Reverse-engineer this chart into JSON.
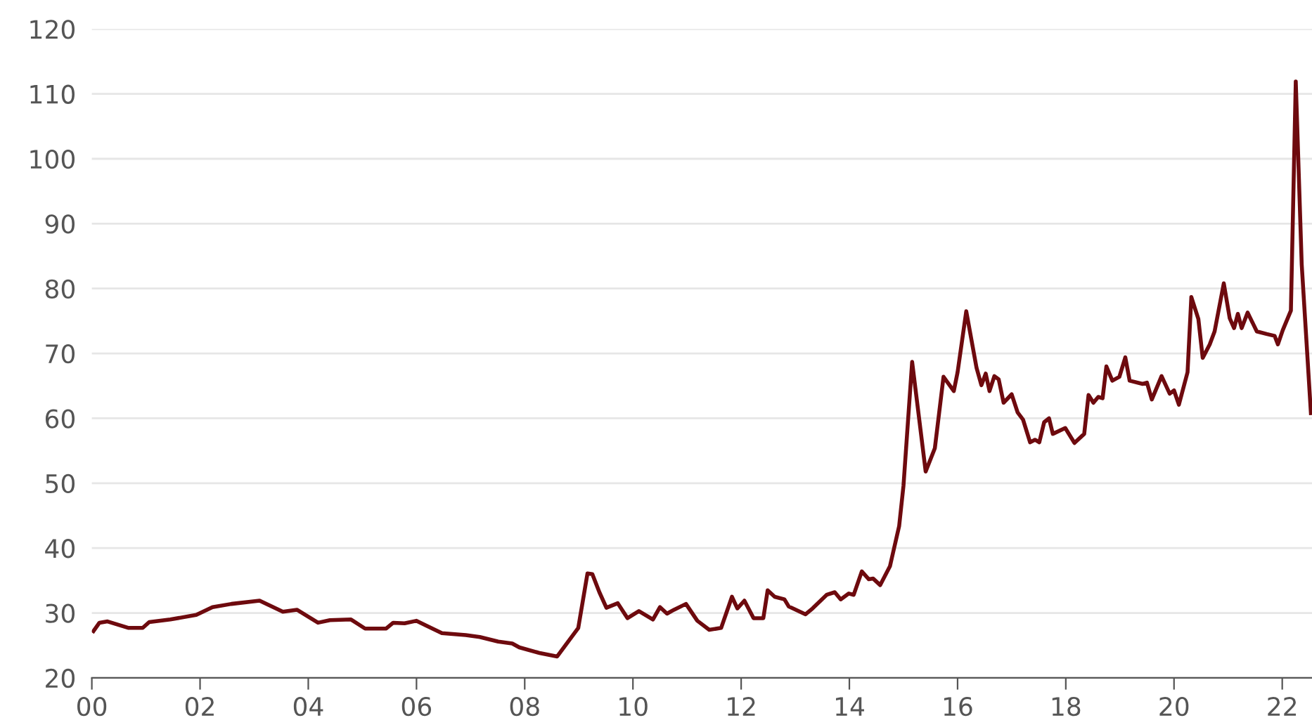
{
  "chart_data": {
    "type": "line",
    "xlim": [
      2000,
      2022.55
    ],
    "ylim": [
      20,
      120
    ],
    "xticks": [
      {
        "value": 2000,
        "label": "00"
      },
      {
        "value": 2002,
        "label": "02"
      },
      {
        "value": 2004,
        "label": "04"
      },
      {
        "value": 2006,
        "label": "06"
      },
      {
        "value": 2008,
        "label": "08"
      },
      {
        "value": 2010,
        "label": "10"
      },
      {
        "value": 2012,
        "label": "12"
      },
      {
        "value": 2014,
        "label": "14"
      },
      {
        "value": 2016,
        "label": "16"
      },
      {
        "value": 2018,
        "label": "18"
      },
      {
        "value": 2020,
        "label": "20"
      },
      {
        "value": 2022,
        "label": "22"
      }
    ],
    "yticks": [
      20,
      30,
      40,
      50,
      60,
      70,
      80,
      90,
      100,
      110,
      120
    ],
    "grid": "y",
    "line_style": "solid",
    "series": [
      {
        "color": "#6e0a0e",
        "x": [
          2000.03,
          2000.14,
          2000.29,
          2000.68,
          2000.94,
          2001.06,
          2001.45,
          2001.93,
          2002.23,
          2002.58,
          2003.1,
          2003.53,
          2003.79,
          2004.18,
          2004.4,
          2004.79,
          2005.05,
          2005.44,
          2005.57,
          2005.78,
          2006.0,
          2006.22,
          2006.47,
          2006.91,
          2007.17,
          2007.51,
          2007.77,
          2007.9,
          2008.29,
          2008.6,
          2008.99,
          2009.16,
          2009.25,
          2009.38,
          2009.51,
          2009.72,
          2009.9,
          2010.11,
          2010.37,
          2010.5,
          2010.63,
          2010.76,
          2010.98,
          2011.19,
          2011.41,
          2011.63,
          2011.83,
          2011.93,
          2012.06,
          2012.23,
          2012.41,
          2012.49,
          2012.62,
          2012.8,
          2012.88,
          2013.19,
          2013.32,
          2013.58,
          2013.73,
          2013.84,
          2013.99,
          2014.08,
          2014.23,
          2014.36,
          2014.44,
          2014.57,
          2014.75,
          2014.92,
          2015.0,
          2015.16,
          2015.41,
          2015.58,
          2015.74,
          2015.93,
          2016.0,
          2016.16,
          2016.35,
          2016.44,
          2016.52,
          2016.59,
          2016.68,
          2016.76,
          2016.85,
          2017.0,
          2017.11,
          2017.21,
          2017.34,
          2017.43,
          2017.51,
          2017.6,
          2017.69,
          2017.76,
          2017.99,
          2018.16,
          2018.34,
          2018.42,
          2018.51,
          2018.6,
          2018.68,
          2018.75,
          2018.86,
          2018.99,
          2019.1,
          2019.18,
          2019.42,
          2019.5,
          2019.59,
          2019.77,
          2019.92,
          2020.0,
          2020.09,
          2020.25,
          2020.32,
          2020.45,
          2020.53,
          2020.66,
          2020.75,
          2020.92,
          2021.03,
          2021.11,
          2021.18,
          2021.25,
          2021.36,
          2021.53,
          2021.71,
          2021.86,
          2021.92,
          2022.01,
          2022.16,
          2022.25,
          2022.36,
          2022.53
        ],
        "values": [
          27.2,
          28.5,
          28.7,
          27.7,
          27.7,
          28.6,
          29.0,
          29.7,
          30.9,
          31.4,
          31.9,
          30.2,
          30.5,
          28.5,
          28.9,
          29.0,
          27.6,
          27.6,
          28.5,
          28.4,
          28.8,
          27.9,
          26.9,
          26.6,
          26.3,
          25.6,
          25.3,
          24.7,
          23.8,
          23.3,
          27.7,
          36.1,
          36.0,
          33.2,
          30.8,
          31.5,
          29.2,
          30.3,
          29.0,
          30.9,
          29.9,
          30.5,
          31.4,
          28.8,
          27.4,
          27.7,
          32.5,
          30.7,
          31.9,
          29.2,
          29.2,
          33.5,
          32.5,
          32.1,
          31.0,
          29.8,
          30.7,
          32.8,
          33.2,
          32.1,
          33.0,
          32.8,
          36.4,
          35.2,
          35.3,
          34.3,
          37.2,
          43.4,
          49.6,
          68.7,
          51.8,
          55.4,
          66.4,
          64.2,
          67.1,
          76.5,
          67.8,
          65.1,
          66.9,
          64.2,
          66.5,
          66.0,
          62.4,
          63.7,
          60.9,
          59.8,
          56.3,
          56.7,
          56.3,
          59.4,
          60.0,
          57.6,
          58.5,
          56.2,
          57.6,
          63.6,
          62.4,
          63.3,
          63.1,
          68.0,
          65.8,
          66.4,
          69.4,
          65.8,
          65.3,
          65.5,
          62.9,
          66.5,
          63.8,
          64.3,
          62.1,
          67.1,
          78.7,
          75.3,
          69.3,
          71.4,
          73.4,
          80.8,
          75.4,
          73.9,
          76.1,
          73.9,
          76.3,
          73.4,
          73.0,
          72.7,
          71.4,
          73.6,
          76.6,
          111.9,
          83.7,
          60.8
        ]
      }
    ]
  }
}
